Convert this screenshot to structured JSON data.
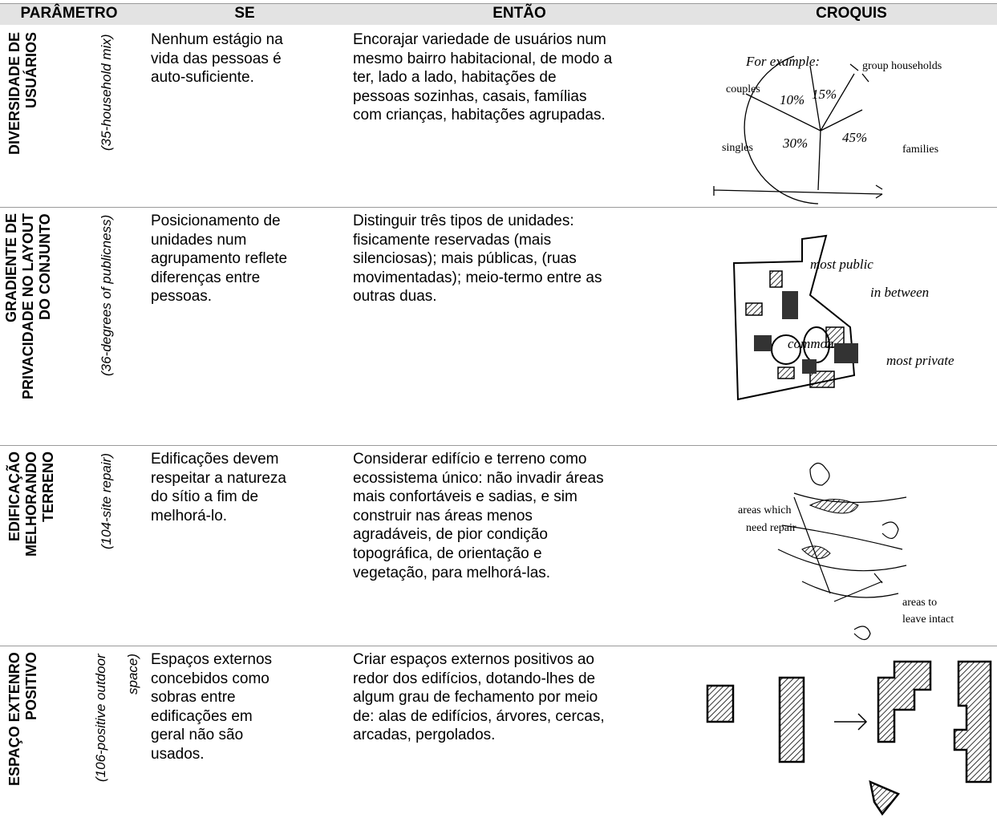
{
  "header": {
    "parameter": "PARÂMETRO",
    "if": "SE",
    "then": "ENTÃO",
    "sketches": "CROQUIS"
  },
  "rows": [
    {
      "name": [
        "DIVERSIDADE DE",
        "USUÁRIOS"
      ],
      "pattern": [
        "(35-household mix)"
      ],
      "if": [
        "Nenhum estágio na",
        "vida das pessoas é",
        "auto-suficiente."
      ],
      "then": [
        "Encorajar variedade de usuários num",
        "mesmo bairro habitacional, de modo a",
        "ter, lado a lado, habitações de",
        "pessoas sozinhas, casais, famílias",
        "com crianças, habitações agrupadas."
      ],
      "sketch_labels": [
        "For example:",
        "group households",
        "couples",
        "10%",
        "15%",
        "45%",
        "30%",
        "singles",
        "families"
      ]
    },
    {
      "name": [
        "GRADIENTE DE",
        "PRIVACIDADE NO LAYOUT",
        "DO CONJUNTO"
      ],
      "pattern": [
        "(36-degrees of publicness)"
      ],
      "if": [
        "Posicionamento de",
        "unidades num",
        "agrupamento reflete",
        "diferenças entre",
        "pessoas."
      ],
      "then": [
        "Distinguir três tipos de unidades:",
        "fisicamente reservadas (mais",
        "silenciosas); mais públicas, (ruas",
        "movimentadas); meio-termo entre as",
        "outras duas."
      ],
      "sketch_labels": [
        "most public",
        "in between",
        "most private",
        "common"
      ]
    },
    {
      "name": [
        "EDIFICAÇÃO",
        "MELHORANDO",
        "TERRENO"
      ],
      "pattern": [
        "(104-site repair)"
      ],
      "if": [
        "Edificações devem",
        "respeitar a natureza",
        "do sítio a fim de",
        "melhorá-lo."
      ],
      "then": [
        "Considerar edifício e terreno como",
        "ecossistema único: não invadir áreas",
        "mais confortáveis e sadias, e sim",
        "construir nas áreas menos",
        "agradáveis, de pior condição",
        "topográfica, de orientação e",
        "vegetação, para melhorá-las."
      ],
      "sketch_labels": [
        "areas which",
        "need repair",
        "areas to",
        "leave intact"
      ]
    },
    {
      "name": [
        "ESPAÇO EXTENRO",
        "POSITIVO"
      ],
      "pattern": [
        "(106-positive outdoor",
        "space)"
      ],
      "if": [
        "Espaços externos",
        "concebidos como",
        "sobras entre",
        "edificações em",
        "geral não são",
        "usados."
      ],
      "then": [
        "Criar espaços externos positivos ao",
        "redor dos edifícios, dotando-lhes de",
        "algum grau de fechamento por meio",
        "de: alas de edifícios, árvores, cercas,",
        "arcadas, pergolados."
      ]
    }
  ]
}
